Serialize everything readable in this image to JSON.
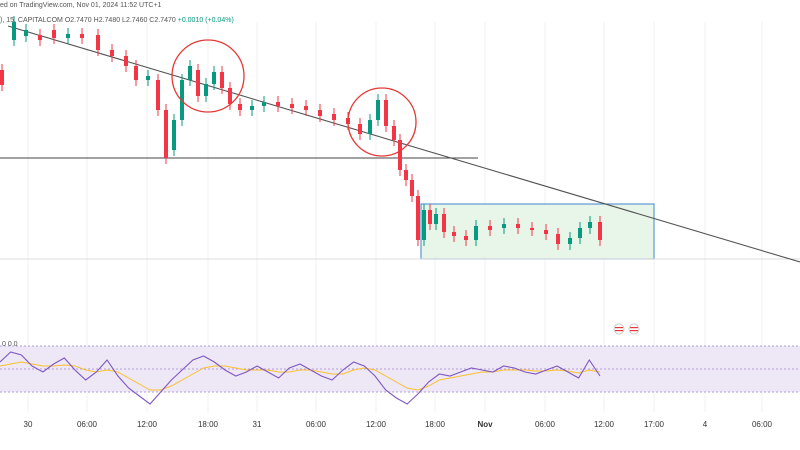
{
  "header": {
    "attribution": "ed on TradingView.com, Nov 01, 2024 11:52 UTC+1",
    "symbol_line": "), 15, CAPITALCOM",
    "ohlc": "O2.7470 H2.7480 L2.7460 C2.7470",
    "change": "+0.0010 (+0.04%)"
  },
  "rsi_label": "0 0 0",
  "chart_data": {
    "type": "candlestick",
    "title": "",
    "xlabel": "",
    "ylabel": "",
    "x_ticks": [
      "30",
      "06:00",
      "12:00",
      "18:00",
      "31",
      "06:00",
      "12:00",
      "18:00",
      "Nov",
      "06:00",
      "12:00",
      "17:00",
      "4",
      "06:00"
    ],
    "colors": {
      "up": "#089981",
      "down": "#f23645",
      "trendline": "#555555",
      "circle": "#e53935",
      "range_box_fill": "#e8f5e9",
      "range_box_border": "#5b9bd5",
      "rsi": "#7e57c2",
      "rsi_ma": "#fbc02d",
      "rsi_band": "#ede7f6"
    },
    "candles": [
      {
        "t": 0,
        "o": 70,
        "c": 85
      },
      {
        "t": 12,
        "o": 40,
        "c": 22
      },
      {
        "t": 24,
        "o": 36,
        "c": 30
      },
      {
        "t": 38,
        "o": 35,
        "c": 40
      },
      {
        "t": 52,
        "o": 30,
        "c": 38
      },
      {
        "t": 66,
        "o": 38,
        "c": 34
      },
      {
        "t": 80,
        "o": 34,
        "c": 38
      },
      {
        "t": 96,
        "o": 35,
        "c": 50
      },
      {
        "t": 110,
        "o": 50,
        "c": 56
      },
      {
        "t": 124,
        "o": 56,
        "c": 66
      },
      {
        "t": 134,
        "o": 66,
        "c": 80
      },
      {
        "t": 146,
        "o": 80,
        "c": 76
      },
      {
        "t": 156,
        "o": 80,
        "c": 110
      },
      {
        "t": 164,
        "o": 110,
        "c": 158
      },
      {
        "t": 172,
        "o": 150,
        "c": 120
      },
      {
        "t": 180,
        "o": 120,
        "c": 80
      },
      {
        "t": 188,
        "o": 80,
        "c": 66
      },
      {
        "t": 196,
        "o": 70,
        "c": 96
      },
      {
        "t": 204,
        "o": 96,
        "c": 84
      },
      {
        "t": 212,
        "o": 84,
        "c": 72
      },
      {
        "t": 220,
        "o": 72,
        "c": 88
      },
      {
        "t": 228,
        "o": 88,
        "c": 104
      },
      {
        "t": 238,
        "o": 104,
        "c": 110
      },
      {
        "t": 250,
        "o": 110,
        "c": 106
      },
      {
        "t": 262,
        "o": 106,
        "c": 102
      },
      {
        "t": 276,
        "o": 102,
        "c": 106
      },
      {
        "t": 290,
        "o": 104,
        "c": 108
      },
      {
        "t": 304,
        "o": 106,
        "c": 110
      },
      {
        "t": 318,
        "o": 110,
        "c": 116
      },
      {
        "t": 332,
        "o": 114,
        "c": 120
      },
      {
        "t": 346,
        "o": 118,
        "c": 124
      },
      {
        "t": 358,
        "o": 124,
        "c": 134
      },
      {
        "t": 368,
        "o": 134,
        "c": 120
      },
      {
        "t": 376,
        "o": 120,
        "c": 100
      },
      {
        "t": 384,
        "o": 100,
        "c": 126
      },
      {
        "t": 392,
        "o": 126,
        "c": 140
      },
      {
        "t": 398,
        "o": 140,
        "c": 170
      },
      {
        "t": 404,
        "o": 170,
        "c": 180
      },
      {
        "t": 410,
        "o": 180,
        "c": 196
      },
      {
        "t": 416,
        "o": 196,
        "c": 240
      },
      {
        "t": 422,
        "o": 240,
        "c": 210
      },
      {
        "t": 428,
        "o": 210,
        "c": 224
      },
      {
        "t": 434,
        "o": 224,
        "c": 214
      },
      {
        "t": 442,
        "o": 214,
        "c": 232
      },
      {
        "t": 452,
        "o": 232,
        "c": 236
      },
      {
        "t": 464,
        "o": 236,
        "c": 240
      },
      {
        "t": 474,
        "o": 240,
        "c": 226
      },
      {
        "t": 488,
        "o": 226,
        "c": 230
      },
      {
        "t": 502,
        "o": 228,
        "c": 224
      },
      {
        "t": 516,
        "o": 224,
        "c": 228
      },
      {
        "t": 530,
        "o": 228,
        "c": 230
      },
      {
        "t": 544,
        "o": 230,
        "c": 234
      },
      {
        "t": 556,
        "o": 234,
        "c": 244
      },
      {
        "t": 568,
        "o": 244,
        "c": 238
      },
      {
        "t": 578,
        "o": 238,
        "c": 228
      },
      {
        "t": 588,
        "o": 228,
        "c": 222
      },
      {
        "t": 598,
        "o": 222,
        "c": 240
      }
    ],
    "trendline": [
      [
        8,
        26
      ],
      [
        800,
        262
      ]
    ],
    "horizontal_line": {
      "y": 158,
      "x1": 0,
      "x2": 478
    },
    "support_line": {
      "y": 259
    },
    "circles": [
      {
        "cx": 208,
        "cy": 76,
        "r": 36
      },
      {
        "cx": 382,
        "cy": 122,
        "r": 34
      }
    ],
    "range_box": {
      "x1": 421,
      "x2": 654,
      "y1": 204,
      "y2": 259
    },
    "rsi": [
      362,
      352,
      355,
      366,
      372,
      364,
      358,
      370,
      380,
      372,
      360,
      376,
      388,
      396,
      404,
      392,
      380,
      370,
      360,
      356,
      362,
      370,
      376,
      372,
      366,
      372,
      378,
      368,
      364,
      370,
      376,
      380,
      370,
      362,
      366,
      376,
      390,
      398,
      404,
      394,
      382,
      374,
      376,
      372,
      368,
      370,
      372,
      366,
      368,
      372,
      374,
      370,
      366,
      372,
      378,
      360,
      376
    ],
    "rsi_ma": [
      366,
      364,
      362,
      364,
      366,
      366,
      365,
      366,
      370,
      372,
      370,
      372,
      378,
      384,
      390,
      390,
      386,
      380,
      374,
      368,
      366,
      366,
      368,
      370,
      370,
      370,
      372,
      372,
      370,
      370,
      372,
      374,
      374,
      370,
      368,
      370,
      376,
      382,
      388,
      390,
      386,
      380,
      378,
      376,
      374,
      372,
      372,
      370,
      370,
      370,
      371,
      371,
      370,
      371,
      373,
      370,
      372
    ]
  }
}
